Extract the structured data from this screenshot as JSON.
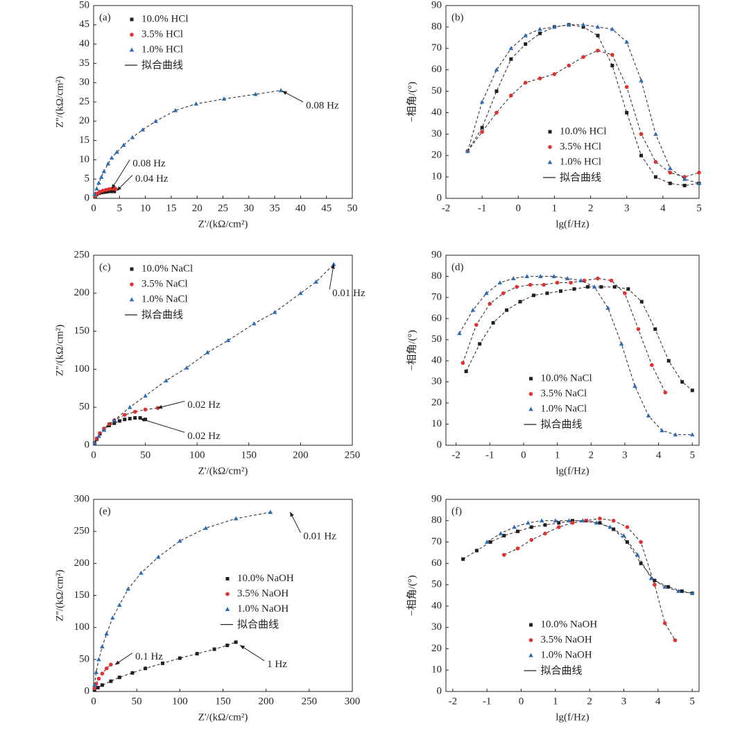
{
  "chart_data": [
    {
      "type": "scatter",
      "label": "(a)",
      "x_label": "Z'/(kΩ/cm²)",
      "y_label": "Z''/(kΩ/cm²)",
      "fit_label": "拟合曲线",
      "legend": "upper left",
      "xlim": [
        0,
        50
      ],
      "ylim": [
        0,
        50
      ],
      "xticks": [
        0,
        5,
        10,
        15,
        20,
        25,
        30,
        35,
        40,
        45,
        50
      ],
      "yticks": [
        0,
        5,
        10,
        15,
        20,
        25,
        30,
        35,
        40,
        45,
        50
      ],
      "series": [
        {
          "name": "10.0% HCl",
          "color": "#231f20",
          "marker": "square",
          "x": [
            0.3,
            0.6,
            1,
            1.5,
            2,
            2.5,
            3,
            3.5,
            4
          ],
          "values": [
            0.5,
            1,
            1.3,
            1.5,
            1.6,
            1.7,
            1.8,
            1.8,
            1.8
          ]
        },
        {
          "name": "3.5% HCl",
          "color": "#e03030",
          "marker": "circle",
          "x": [
            0.3,
            0.7,
            1.2,
            1.8,
            2.4,
            3,
            3.6,
            4.2
          ],
          "values": [
            0.6,
            1.2,
            1.7,
            2,
            2.2,
            2.4,
            2.5,
            2.5
          ]
        },
        {
          "name": "1.0% HCl",
          "color": "#2e6db4",
          "marker": "triangle",
          "x": [
            0.2,
            0.6,
            1,
            1.5,
            2,
            2.8,
            3.5,
            4.5,
            5.8,
            7.5,
            9.5,
            12,
            15.8,
            19.8,
            25.2,
            31.3,
            36.2
          ],
          "values": [
            1,
            2.5,
            4,
            5.5,
            7,
            9,
            10.5,
            12,
            13.8,
            15.8,
            17.8,
            20,
            22.8,
            24.5,
            25.8,
            27,
            28
          ]
        }
      ],
      "annotations": [
        {
          "text": "0.08 Hz",
          "x": 36.5,
          "y": 27.8,
          "text_x": 40.5,
          "text_y": 25
        },
        {
          "text": "0.08 Hz",
          "x": 3.5,
          "y": 2.5,
          "text_x": 7,
          "text_y": 10
        },
        {
          "text": "0.04 Hz",
          "x": 4.5,
          "y": 2,
          "text_x": 7.5,
          "text_y": 6
        }
      ]
    },
    {
      "type": "scatter",
      "label": "(b)",
      "x_label": "lg(f/Hz)",
      "y_label": "−相角/(°)",
      "fit_label": "拟合曲线",
      "legend": "lower right",
      "xlim": [
        -2,
        5
      ],
      "ylim": [
        0,
        90
      ],
      "xticks": [
        -2,
        -1,
        0,
        1,
        2,
        3,
        4,
        5
      ],
      "yticks": [
        0,
        10,
        20,
        30,
        40,
        50,
        60,
        70,
        80,
        90
      ],
      "series": [
        {
          "name": "10.0% HCl",
          "color": "#231f20",
          "marker": "square",
          "x": [
            -1.4,
            -1.0,
            -0.6,
            -0.2,
            0.2,
            0.6,
            1.0,
            1.4,
            1.8,
            2.2,
            2.6,
            3.0,
            3.4,
            3.8,
            4.2,
            4.6,
            5.0
          ],
          "values": [
            22,
            33,
            50,
            65,
            72,
            77,
            80,
            81,
            80,
            76,
            62,
            40,
            20,
            10,
            7,
            6,
            7
          ]
        },
        {
          "name": "3.5% HCl",
          "color": "#e03030",
          "marker": "circle",
          "x": [
            -1.4,
            -1.0,
            -0.6,
            -0.2,
            0.2,
            0.6,
            1.0,
            1.4,
            1.8,
            2.2,
            2.6,
            3.0,
            3.4,
            3.8,
            4.2,
            4.6,
            5.0
          ],
          "values": [
            22,
            31,
            40,
            48,
            54,
            56,
            58,
            62,
            66,
            69,
            67,
            52,
            30,
            17,
            12,
            10,
            12
          ]
        },
        {
          "name": "1.0% HCl",
          "color": "#2e6db4",
          "marker": "triangle",
          "x": [
            -1.4,
            -1.0,
            -0.6,
            -0.2,
            0.2,
            0.6,
            1.0,
            1.4,
            1.8,
            2.2,
            2.6,
            3.0,
            3.4,
            3.8,
            4.2,
            4.6,
            5.0
          ],
          "values": [
            22,
            45,
            60,
            70,
            76,
            79,
            80,
            81,
            81,
            80,
            79,
            73,
            55,
            30,
            14,
            9,
            7
          ]
        }
      ],
      "annotations": []
    },
    {
      "type": "scatter",
      "label": "(c)",
      "x_label": "Z'/(kΩ/cm²)",
      "y_label": "Z''/(kΩ/cm²)",
      "fit_label": "拟合曲线",
      "legend": "upper left",
      "xlim": [
        0,
        250
      ],
      "ylim": [
        0,
        250
      ],
      "xticks": [
        0,
        50,
        100,
        150,
        200,
        250
      ],
      "yticks": [
        0,
        50,
        100,
        150,
        200,
        250
      ],
      "series": [
        {
          "name": "10.0% NaCl",
          "color": "#231f20",
          "marker": "square",
          "x": [
            1,
            3,
            6,
            10,
            15,
            20,
            25,
            30,
            35,
            40,
            45,
            50
          ],
          "values": [
            3,
            8,
            15,
            21,
            26,
            29,
            32,
            34,
            35,
            36,
            36,
            34
          ]
        },
        {
          "name": "3.5% NaCl",
          "color": "#e03030",
          "marker": "circle",
          "x": [
            1,
            3,
            6,
            10,
            15,
            20,
            30,
            40,
            50,
            62
          ],
          "values": [
            3,
            9,
            16,
            22,
            28,
            33,
            40,
            44,
            47,
            49
          ]
        },
        {
          "name": "1.0% NaCl",
          "color": "#2e6db4",
          "marker": "triangle",
          "x": [
            1,
            5,
            10,
            20,
            35,
            50,
            70,
            90,
            110,
            130,
            155,
            175,
            200,
            215,
            232
          ],
          "values": [
            3,
            12,
            20,
            33,
            50,
            65,
            85,
            102,
            122,
            138,
            160,
            175,
            200,
            215,
            238
          ]
        }
      ],
      "annotations": [
        {
          "text": "0.01 Hz",
          "x": 232,
          "y": 238,
          "text_x": 228,
          "text_y": 205
        },
        {
          "text": "0.02 Hz",
          "x": 62,
          "y": 49,
          "text_x": 88,
          "text_y": 58
        },
        {
          "text": "0.02 Hz",
          "x": 45,
          "y": 35,
          "text_x": 88,
          "text_y": 17
        }
      ]
    },
    {
      "type": "scatter",
      "label": "(d)",
      "x_label": "lg(f/Hz)",
      "y_label": "−相角/(°)",
      "fit_label": "拟合曲线",
      "legend": "lower center",
      "xlim": [
        -2.3,
        5.2
      ],
      "ylim": [
        0,
        90
      ],
      "xticks": [
        -2,
        -1,
        0,
        1,
        2,
        3,
        4,
        5
      ],
      "yticks": [
        0,
        10,
        20,
        30,
        40,
        50,
        60,
        70,
        80,
        90
      ],
      "series": [
        {
          "name": "10.0% NaCl",
          "color": "#231f20",
          "marker": "square",
          "x": [
            -1.7,
            -1.3,
            -0.9,
            -0.5,
            -0.1,
            0.3,
            0.7,
            1.1,
            1.5,
            1.9,
            2.3,
            2.7,
            3.1,
            3.5,
            3.9,
            4.3,
            4.7,
            5.0
          ],
          "values": [
            35,
            48,
            58,
            64,
            68,
            71,
            72,
            73,
            74,
            75,
            75,
            75,
            74,
            68,
            55,
            40,
            30,
            26
          ]
        },
        {
          "name": "3.5% NaCl",
          "color": "#e03030",
          "marker": "circle",
          "x": [
            -1.8,
            -1.4,
            -1.0,
            -0.6,
            -0.2,
            0.2,
            0.6,
            1.0,
            1.4,
            1.8,
            2.2,
            2.6,
            3.0,
            3.4,
            3.8,
            4.2
          ],
          "values": [
            39,
            57,
            67,
            72,
            75,
            76,
            76,
            77,
            77,
            78,
            79,
            78,
            72,
            55,
            38,
            25
          ]
        },
        {
          "name": "1.0% NaCl",
          "color": "#2e6db4",
          "marker": "triangle",
          "x": [
            -1.9,
            -1.5,
            -1.1,
            -0.7,
            -0.3,
            0.1,
            0.5,
            0.9,
            1.3,
            1.7,
            2.1,
            2.5,
            2.9,
            3.3,
            3.7,
            4.1,
            4.5,
            5.0
          ],
          "values": [
            53,
            64,
            72,
            77,
            79,
            80,
            80,
            80,
            79,
            78,
            75,
            65,
            48,
            28,
            14,
            7,
            5,
            5
          ]
        }
      ],
      "annotations": []
    },
    {
      "type": "scatter",
      "label": "(e)",
      "x_label": "Z'/(kΩ/cm²)",
      "y_label": "Z''/(kΩ/cm²)",
      "fit_label": "拟合曲线",
      "legend": "center right",
      "xlim": [
        0,
        300
      ],
      "ylim": [
        0,
        300
      ],
      "xticks": [
        0,
        50,
        100,
        150,
        200,
        250,
        300
      ],
      "yticks": [
        0,
        50,
        100,
        150,
        200,
        250,
        300
      ],
      "series": [
        {
          "name": "10.0% NaOH",
          "color": "#231f20",
          "marker": "square",
          "x": [
            1,
            5,
            10,
            20,
            30,
            45,
            60,
            80,
            100,
            120,
            140,
            155,
            165
          ],
          "values": [
            2,
            6,
            10,
            16,
            22,
            29,
            36,
            44,
            52,
            59,
            66,
            72,
            77
          ]
        },
        {
          "name": "3.5% NaOH",
          "color": "#e03030",
          "marker": "circle",
          "x": [
            1,
            3,
            6,
            10,
            15,
            20
          ],
          "values": [
            5,
            12,
            20,
            28,
            36,
            42
          ]
        },
        {
          "name": "1.0% NaOH",
          "color": "#2e6db4",
          "marker": "triangle",
          "x": [
            1,
            3,
            6,
            10,
            15,
            22,
            30,
            40,
            55,
            75,
            100,
            130,
            165,
            205
          ],
          "values": [
            10,
            30,
            50,
            70,
            90,
            115,
            135,
            160,
            185,
            210,
            235,
            255,
            270,
            280
          ]
        }
      ],
      "annotations": [
        {
          "text": "0.01 Hz",
          "x": 228,
          "y": 280,
          "text_x": 240,
          "text_y": 248
        },
        {
          "text": "0.1 Hz",
          "x": 25,
          "y": 42,
          "text_x": 45,
          "text_y": 60
        },
        {
          "text": "1 Hz",
          "x": 170,
          "y": 72,
          "text_x": 198,
          "text_y": 48
        }
      ]
    },
    {
      "type": "scatter",
      "label": "(f)",
      "x_label": "lg(f/Hz)",
      "y_label": "−相角/(°)",
      "fit_label": "拟合曲线",
      "legend": "lower center",
      "xlim": [
        -2.2,
        5.2
      ],
      "ylim": [
        0,
        90
      ],
      "xticks": [
        -2,
        -1,
        0,
        1,
        2,
        3,
        4,
        5
      ],
      "yticks": [
        0,
        10,
        20,
        30,
        40,
        50,
        60,
        70,
        80,
        90
      ],
      "series": [
        {
          "name": "10.0% NaOH",
          "color": "#231f20",
          "marker": "square",
          "x": [
            -1.7,
            -1.3,
            -0.9,
            -0.5,
            -0.1,
            0.3,
            0.7,
            1.1,
            1.5,
            1.9,
            2.3,
            2.7,
            3.1,
            3.5,
            3.9,
            4.3,
            4.7,
            5.0
          ],
          "values": [
            62,
            66,
            70,
            73,
            75,
            77,
            78,
            79,
            80,
            80,
            79,
            76,
            70,
            60,
            52,
            49,
            47,
            46
          ]
        },
        {
          "name": "3.5% NaOH",
          "color": "#e03030",
          "marker": "circle",
          "x": [
            -0.5,
            -0.1,
            0.3,
            0.7,
            1.1,
            1.5,
            1.9,
            2.3,
            2.7,
            3.1,
            3.5,
            3.9,
            4.2,
            4.5
          ],
          "values": [
            64,
            67,
            71,
            74,
            77,
            79,
            80,
            81,
            80,
            77,
            70,
            50,
            32,
            24
          ]
        },
        {
          "name": "1.0% NaOH",
          "color": "#2e6db4",
          "marker": "triangle",
          "x": [
            -1.0,
            -0.6,
            -0.2,
            0.2,
            0.6,
            1.0,
            1.4,
            1.8,
            2.2,
            2.6,
            3.0,
            3.4,
            3.8,
            4.2,
            4.6,
            5.0
          ],
          "values": [
            70,
            74,
            77,
            79,
            80,
            80,
            80,
            80,
            79,
            77,
            73,
            64,
            53,
            49,
            47,
            46
          ]
        }
      ],
      "annotations": []
    }
  ]
}
